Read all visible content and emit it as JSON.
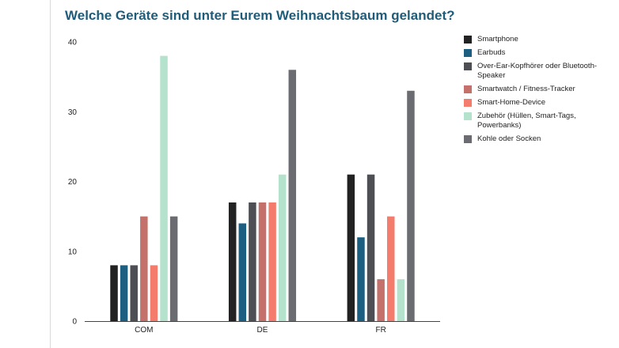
{
  "chart_data": {
    "type": "bar",
    "title": "Welche Geräte sind unter Eurem Weihnachtsbaum gelandet?",
    "categories": [
      "COM",
      "DE",
      "FR"
    ],
    "series": [
      {
        "name": "Smartphone",
        "color": "#222222",
        "values": [
          8,
          17,
          21
        ]
      },
      {
        "name": "Earbuds",
        "color": "#1d5f80",
        "values": [
          8,
          14,
          12
        ]
      },
      {
        "name": "Over-Ear-Kopfhörer oder Bluetooth-Speaker",
        "color": "#4d4f54",
        "values": [
          8,
          17,
          21
        ]
      },
      {
        "name": "Smartwatch / Fitness-Tracker",
        "color": "#c4716b",
        "values": [
          15,
          17,
          6
        ]
      },
      {
        "name": "Smart-Home-Device",
        "color": "#f47c6c",
        "values": [
          8,
          17,
          15
        ]
      },
      {
        "name": "Zubehör (Hüllen, Smart-Tags, Powerbanks)",
        "color": "#b5e2cc",
        "values": [
          38,
          21,
          6
        ]
      },
      {
        "name": "Kohle oder Socken",
        "color": "#6a6c72",
        "values": [
          15,
          36,
          33
        ]
      }
    ],
    "ylim": [
      0,
      40
    ],
    "yticks": [
      0,
      10,
      20,
      30,
      40
    ],
    "xlabel": "",
    "ylabel": "",
    "grid": false,
    "legend_position": "right"
  }
}
